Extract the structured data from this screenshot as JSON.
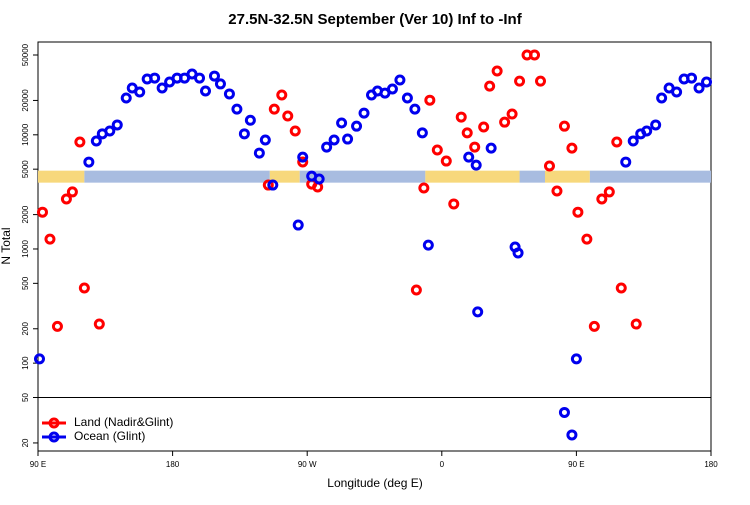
{
  "chart_data": {
    "type": "scatter",
    "title": "27.5N-32.5N September (Ver 10)   Inf to -Inf",
    "x_label": "Longitude (deg E)",
    "y_label": "N Total",
    "log_y": true,
    "legend": "bottom-left",
    "separator_at": 50,
    "xlim": [
      90,
      540
    ],
    "xticks": [
      {
        "value": 90,
        "label": "90 E"
      },
      {
        "value": 180,
        "label": "180"
      },
      {
        "value": 270,
        "label": "90 W"
      },
      {
        "value": 360,
        "label": "0"
      },
      {
        "value": 450,
        "label": "90 E"
      },
      {
        "value": 540,
        "label": "180"
      }
    ],
    "ylim": [
      17,
      65000
    ],
    "yticks": [
      20,
      50,
      100,
      200,
      500,
      1000,
      2000,
      5000,
      10000,
      20000,
      50000
    ],
    "band": {
      "y": 4300,
      "segments": [
        {
          "x": [
            90,
            121
          ],
          "color": "#f7d87c"
        },
        {
          "x": [
            121,
            245
          ],
          "color": "#a8bce0"
        },
        {
          "x": [
            245,
            265
          ],
          "color": "#f7d87c"
        },
        {
          "x": [
            265,
            349
          ],
          "color": "#a8bce0"
        },
        {
          "x": [
            349,
            412
          ],
          "color": "#f7d87c"
        },
        {
          "x": [
            412,
            429
          ],
          "color": "#a8bce0"
        },
        {
          "x": [
            429,
            459
          ],
          "color": "#f7d87c"
        },
        {
          "x": [
            459,
            540
          ],
          "color": "#a8bce0"
        }
      ]
    },
    "series": [
      {
        "name": "Land (Nadir&Glint)",
        "color": "#ff0000",
        "x": [
          93,
          98,
          103,
          109,
          113,
          118,
          121,
          131,
          244,
          248,
          253,
          257,
          262,
          267,
          273,
          277,
          343,
          348,
          352,
          357,
          363,
          368,
          373,
          377,
          382,
          388,
          392,
          397,
          402,
          407,
          412,
          417,
          422,
          426,
          432,
          437,
          442,
          447,
          451,
          457,
          462,
          467,
          472,
          477,
          480,
          490
        ],
        "values": [
          2100,
          1220,
          210,
          2740,
          3160,
          8650,
          455,
          220,
          3630,
          16800,
          22300,
          14600,
          10800,
          5780,
          3700,
          3490,
          437,
          3420,
          20100,
          7360,
          5890,
          2480,
          14300,
          10400,
          7810,
          11700,
          26700,
          36200,
          12900,
          15200,
          29500,
          50000,
          50000,
          29500,
          5330,
          3220,
          11900,
          7650,
          2100,
          1220,
          210,
          2740,
          3160,
          8650,
          455,
          220
        ]
      },
      {
        "name": "Ocean (Glint)",
        "color": "#0000ee",
        "x": [
          91,
          124,
          129,
          133,
          138,
          143,
          149,
          153,
          158,
          163,
          168,
          173,
          178,
          183,
          188,
          193,
          198,
          202,
          208,
          212,
          218,
          223,
          228,
          232,
          238,
          242,
          247,
          264,
          267,
          273,
          278,
          283,
          288,
          293,
          297,
          303,
          308,
          313,
          317,
          322,
          327,
          332,
          337,
          342,
          347,
          351,
          378,
          383,
          384,
          393,
          409,
          411,
          442,
          447,
          450,
          483,
          488,
          493,
          497,
          503,
          507,
          512,
          517,
          522,
          527,
          532,
          537
        ],
        "values": [
          109,
          5770,
          8820,
          10200,
          10800,
          12200,
          21000,
          25700,
          23700,
          30800,
          31400,
          25700,
          29000,
          31400,
          31400,
          34100,
          31400,
          24200,
          32700,
          27900,
          22800,
          16800,
          10200,
          13400,
          6920,
          9000,
          3630,
          1620,
          6380,
          4350,
          4100,
          7810,
          9000,
          12700,
          9180,
          11900,
          15500,
          22300,
          24200,
          23200,
          25200,
          30200,
          21000,
          16800,
          10400,
          1080,
          6380,
          5430,
          281,
          7650,
          1040,
          923,
          37,
          23.5,
          109,
          5770,
          8820,
          10200,
          10800,
          12200,
          21000,
          25700,
          23700,
          30800,
          31400,
          25700,
          29000
        ]
      }
    ]
  }
}
